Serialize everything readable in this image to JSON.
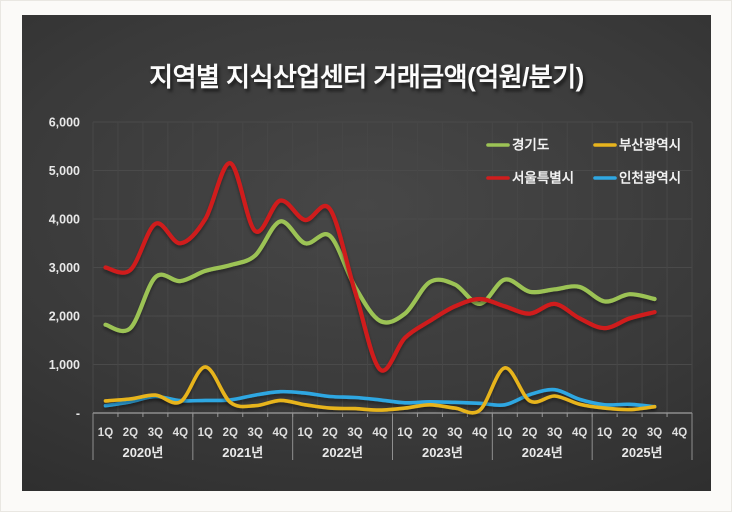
{
  "title": "지역별 지식산업센터 거래금액(억원/분기)",
  "page": {
    "background": "#fbfaf8",
    "card_background": "#3a3a3a"
  },
  "chart_data": {
    "type": "line",
    "title": "지역별 지식산업센터 거래금액(억원/분기)",
    "unit": "억원/분기",
    "grid": true,
    "legend_position": "top-right-2col",
    "smooth": true,
    "years": [
      "2020년",
      "2021년",
      "2022년",
      "2023년",
      "2024년",
      "2025년"
    ],
    "quarter_labels": [
      "1Q",
      "2Q",
      "3Q",
      "4Q"
    ],
    "y_axis": {
      "min": 0,
      "max": 6000,
      "step": 1000,
      "tick_labels": [
        "-",
        "1,000",
        "2,000",
        "3,000",
        "4,000",
        "5,000",
        "6,000"
      ]
    },
    "series": [
      {
        "name": "경기도",
        "slug": "gyeonggi",
        "color": "#9cc355",
        "values": [
          1820,
          1750,
          2800,
          2720,
          2930,
          3050,
          3250,
          3950,
          3500,
          3650,
          2600,
          1900,
          2050,
          2700,
          2650,
          2250,
          2750,
          2500,
          2550,
          2600,
          2300,
          2450,
          2350,
          null
        ]
      },
      {
        "name": "부산광역시",
        "slug": "busan",
        "color": "#e7b41d",
        "values": [
          250,
          290,
          370,
          230,
          950,
          220,
          150,
          260,
          170,
          100,
          90,
          60,
          100,
          170,
          100,
          60,
          930,
          250,
          350,
          180,
          100,
          70,
          130,
          null
        ]
      },
      {
        "name": "서울특별시",
        "slug": "seoul",
        "color": "#d01d1d",
        "values": [
          3000,
          2950,
          3900,
          3500,
          4000,
          5150,
          3750,
          4380,
          3980,
          4200,
          2500,
          900,
          1550,
          1900,
          2200,
          2350,
          2200,
          2050,
          2250,
          1950,
          1750,
          1950,
          2080,
          null
        ]
      },
      {
        "name": "인천광역시",
        "slug": "incheon",
        "color": "#2fa7e2",
        "values": [
          150,
          230,
          340,
          255,
          260,
          270,
          370,
          440,
          410,
          340,
          320,
          270,
          210,
          230,
          220,
          200,
          170,
          380,
          480,
          280,
          170,
          180,
          130,
          null
        ]
      }
    ]
  }
}
